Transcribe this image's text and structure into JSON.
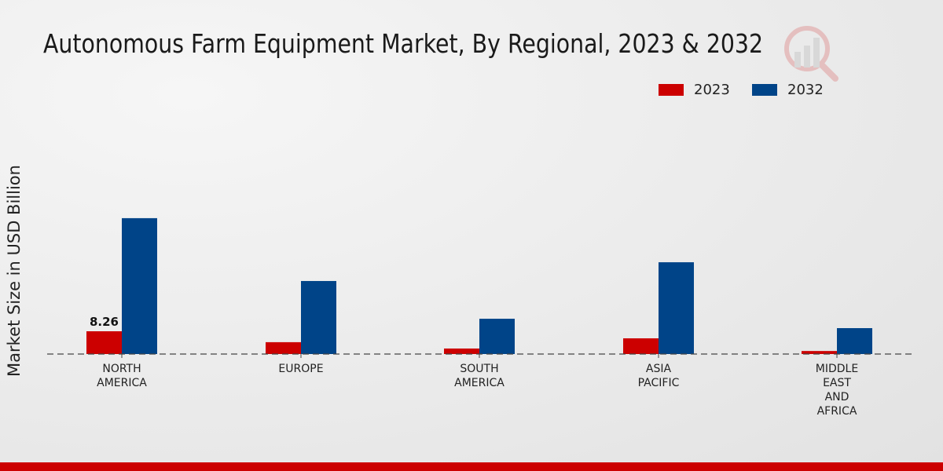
{
  "chart_data": {
    "type": "bar",
    "title": "Autonomous Farm Equipment Market, By Regional, 2023 & 2032",
    "xlabel": "",
    "ylabel": "Market Size in USD Billion",
    "ylim": [
      0,
      60
    ],
    "categories": [
      [
        "NORTH",
        "AMERICA"
      ],
      [
        "EUROPE"
      ],
      [
        "SOUTH",
        "AMERICA"
      ],
      [
        "ASIA",
        "PACIFIC"
      ],
      [
        "MIDDLE",
        "EAST",
        "AND",
        "AFRICA"
      ]
    ],
    "series": [
      {
        "name": "2023",
        "color": "#cc0000",
        "values": [
          8.26,
          4.3,
          2.0,
          5.7,
          1.1
        ]
      },
      {
        "name": "2032",
        "color": "#004488",
        "values": [
          49.3,
          26.5,
          12.8,
          33.3,
          9.4
        ]
      }
    ],
    "data_labels": [
      {
        "series": 0,
        "index": 0,
        "text": "8.26"
      }
    ],
    "legend_position": "top-right",
    "grid": false
  }
}
